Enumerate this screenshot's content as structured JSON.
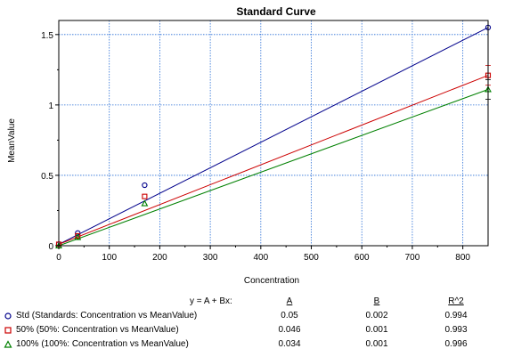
{
  "chart_data": {
    "type": "scatter",
    "title": "Standard Curve",
    "xlabel": "Concentration",
    "ylabel": "MeanValue",
    "xlim": [
      0,
      850
    ],
    "ylim": [
      0,
      1.6
    ],
    "x_ticks": [
      "0",
      "100",
      "200",
      "300",
      "400",
      "500",
      "600",
      "700",
      "800"
    ],
    "y_ticks": [
      "0",
      "0.5",
      "1",
      "1.5"
    ],
    "grid": true,
    "series": [
      {
        "name": "Std (Standards: Concentration vs MeanValue)",
        "color": "#00008b",
        "marker": "circle",
        "points": [
          [
            0,
            0.01
          ],
          [
            37.5,
            0.09
          ],
          [
            170,
            0.43
          ],
          [
            850,
            1.55
          ]
        ],
        "fit": {
          "A": 0.05,
          "B": 0.002,
          "R2": 0.994
        }
      },
      {
        "name": "50% (50%: Concentration vs MeanValue)",
        "color": "#cc0000",
        "marker": "square",
        "points": [
          [
            0,
            0.01
          ],
          [
            37.5,
            0.07
          ],
          [
            170,
            0.35
          ],
          [
            850,
            1.21
          ]
        ],
        "fit": {
          "A": 0.046,
          "B": 0.001,
          "R2": 0.993
        }
      },
      {
        "name": "100% (100%: Concentration vs MeanValue)",
        "color": "#008000",
        "marker": "triangle",
        "points": [
          [
            0,
            0.0
          ],
          [
            37.5,
            0.06
          ],
          [
            170,
            0.3
          ],
          [
            850,
            1.11
          ]
        ],
        "fit": {
          "A": 0.034,
          "B": 0.001,
          "R2": 0.996
        }
      }
    ]
  },
  "legend": {
    "equation_header": "y = A + Bx:",
    "col_a": "A",
    "col_b": "B",
    "col_r2": "R^2",
    "rows": [
      {
        "label": "Std (Standards: Concentration vs MeanValue)",
        "a": "0.05",
        "b": "0.002",
        "r2": "0.994"
      },
      {
        "label": "50% (50%: Concentration vs MeanValue)",
        "a": "0.046",
        "b": "0.001",
        "r2": "0.993"
      },
      {
        "label": "100% (100%: Concentration vs MeanValue)",
        "a": "0.034",
        "b": "0.001",
        "r2": "0.996"
      }
    ]
  }
}
